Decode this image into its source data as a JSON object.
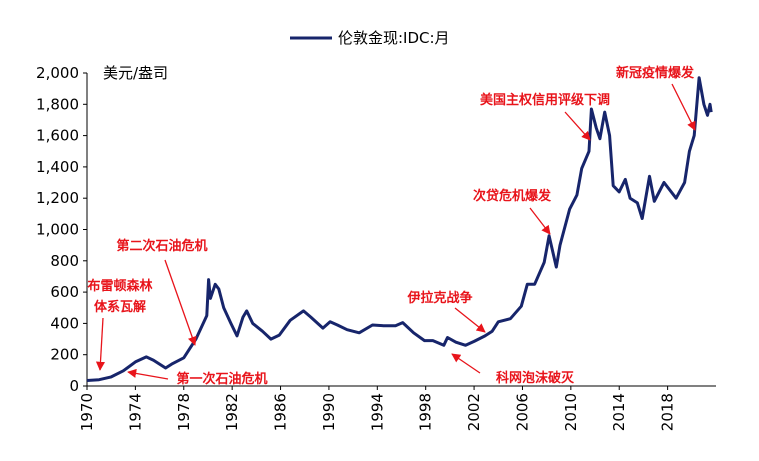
{
  "chart_data": {
    "type": "line",
    "legend_label": "伦敦金现:IDC:月",
    "y_label": "美元/盎司",
    "color": "#17256b",
    "xlim": [
      1970,
      2022
    ],
    "xticks": [
      1970,
      1974,
      1978,
      1982,
      1986,
      1990,
      1994,
      1998,
      2002,
      2006,
      2010,
      2014,
      2018
    ],
    "ylim": [
      0,
      2000
    ],
    "yticks": [
      0,
      200,
      400,
      600,
      800,
      {
        "value": 1000,
        "label": "1,000"
      },
      {
        "value": 1200,
        "label": "1,200"
      },
      {
        "value": 1400,
        "label": "1,400"
      },
      {
        "value": 1600,
        "label": "1,600"
      },
      {
        "value": 1800,
        "label": "1,800"
      },
      {
        "value": 2000,
        "label": "2,000"
      }
    ],
    "x": [
      1970,
      1971,
      1972,
      1973,
      1974,
      1974.9,
      1975.5,
      1976.5,
      1977,
      1978,
      1979,
      1979.9,
      1980.05,
      1980.2,
      1980.6,
      1980.9,
      1981.3,
      1981.9,
      1982.4,
      1982.9,
      1983.2,
      1983.7,
      1984.5,
      1985.2,
      1985.9,
      1986.8,
      1987.9,
      1988.5,
      1989.5,
      1990.1,
      1990.7,
      1991.5,
      1992.5,
      1993.6,
      1994.5,
      1995.5,
      1996.1,
      1997,
      1997.9,
      1998.6,
      1999.5,
      1999.8,
      2000.5,
      2001.3,
      2002,
      2002.9,
      2003.5,
      2004,
      2005,
      2005.9,
      2006.4,
      2007,
      2007.8,
      2008.2,
      2008.8,
      2009.1,
      2009.9,
      2010.5,
      2010.9,
      2011.5,
      2011.7,
      2012.1,
      2012.4,
      2012.8,
      2013.2,
      2013.5,
      2014,
      2014.5,
      2014.9,
      2015.5,
      2015.9,
      2016.5,
      2016.9,
      2017.7,
      2018.7,
      2019.4,
      2019.8,
      2020.2,
      2020.6,
      2021,
      2021.3,
      2021.5,
      2021.6
    ],
    "values": [
      35,
      40,
      58,
      97,
      154,
      186,
      165,
      115,
      140,
      180,
      300,
      450,
      680,
      560,
      650,
      620,
      500,
      400,
      320,
      440,
      480,
      400,
      350,
      300,
      325,
      420,
      480,
      440,
      370,
      410,
      390,
      360,
      340,
      390,
      385,
      385,
      405,
      340,
      290,
      290,
      260,
      310,
      280,
      260,
      285,
      320,
      350,
      410,
      430,
      510,
      650,
      650,
      790,
      960,
      760,
      900,
      1130,
      1220,
      1390,
      1500,
      1770,
      1650,
      1580,
      1750,
      1600,
      1280,
      1240,
      1320,
      1200,
      1170,
      1070,
      1340,
      1180,
      1300,
      1200,
      1300,
      1500,
      1600,
      1970,
      1800,
      1730,
      1800,
      1750
    ],
    "annotations": [
      [
        "布雷顿森林",
        "体系瓦解"
      ],
      [
        "第一次石油危机"
      ],
      [
        "第二次石油危机"
      ],
      [
        "伊拉克战争"
      ],
      [
        "科网泡沫破灭"
      ],
      [
        "次贷危机爆发"
      ],
      [
        "美国主权信用评级下调"
      ],
      [
        "新冠疫情爆发"
      ]
    ]
  }
}
